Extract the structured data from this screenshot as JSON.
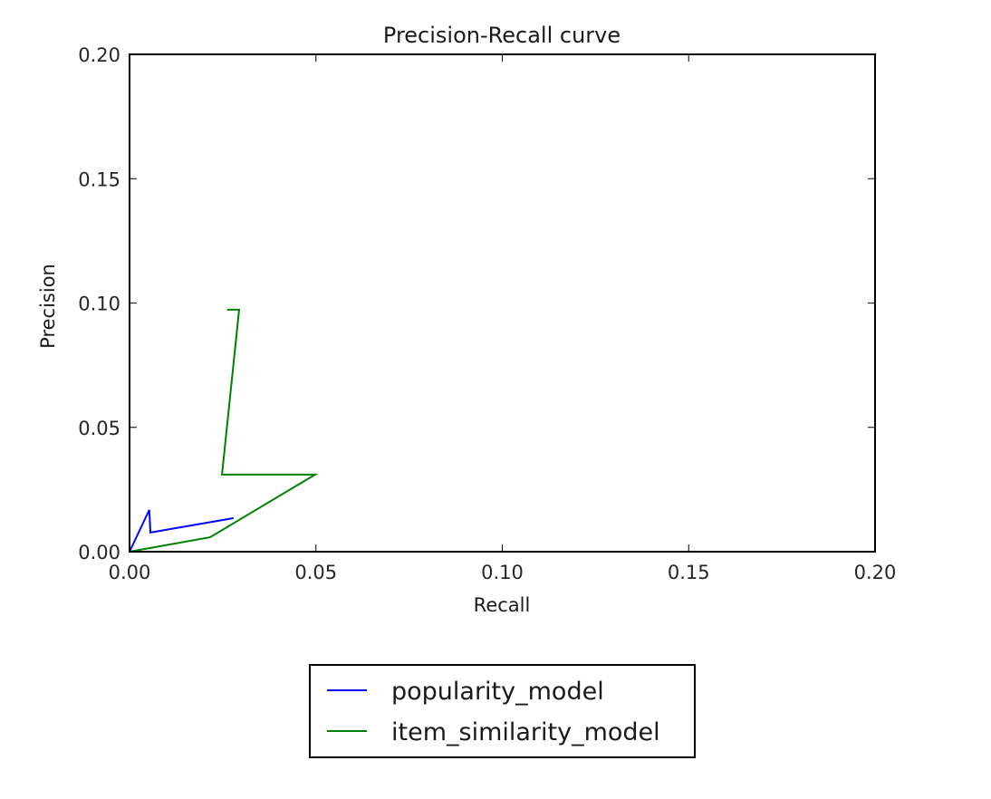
{
  "chart_data": {
    "type": "line",
    "title": "Precision-Recall curve",
    "xlabel": "Recall",
    "ylabel": "Precision",
    "xlim": [
      0.0,
      0.2
    ],
    "ylim": [
      0.0,
      0.2
    ],
    "xticks": [
      "0.00",
      "0.05",
      "0.10",
      "0.15",
      "0.20"
    ],
    "yticks": [
      "0.00",
      "0.05",
      "0.10",
      "0.15",
      "0.20"
    ],
    "grid": false,
    "legend_position": "below plot, center",
    "series": [
      {
        "name": "popularity_model",
        "color": "#0000ff",
        "x": [
          0.0,
          0.0053,
          0.0056,
          0.0279
        ],
        "y": [
          0.0,
          0.0168,
          0.0077,
          0.0135
        ]
      },
      {
        "name": "item_similarity_model",
        "color": "#008000",
        "x": [
          0.0,
          0.0216,
          0.0498,
          0.0248,
          0.0294,
          0.0262
        ],
        "y": [
          0.0,
          0.0058,
          0.031,
          0.031,
          0.0973,
          0.0973
        ]
      }
    ]
  }
}
